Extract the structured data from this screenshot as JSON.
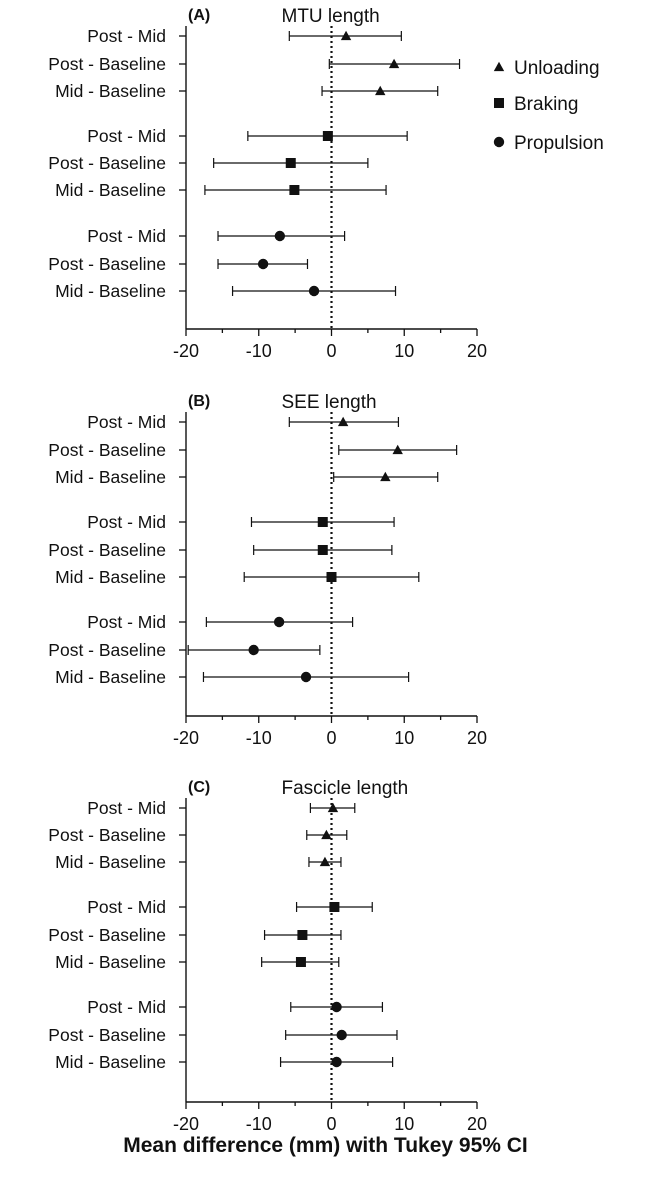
{
  "chart_data": [
    {
      "type": "forest",
      "panel": "(A)",
      "title": "MTU length",
      "xlim": [
        -20,
        20
      ],
      "xticks": [
        -20,
        -10,
        0,
        10,
        20
      ],
      "reference_line": 0,
      "rows": [
        {
          "label": "Post - Mid",
          "group": "Unloading",
          "mean": 2.0,
          "lo": -5.8,
          "hi": 9.6
        },
        {
          "label": "Post - Baseline",
          "group": "Unloading",
          "mean": 8.6,
          "lo": -0.3,
          "hi": 17.6
        },
        {
          "label": "Mid - Baseline",
          "group": "Unloading",
          "mean": 6.7,
          "lo": -1.3,
          "hi": 14.6
        },
        {
          "label": "Post - Mid",
          "group": "Braking",
          "mean": -0.5,
          "lo": -11.5,
          "hi": 10.4
        },
        {
          "label": "Post - Baseline",
          "group": "Braking",
          "mean": -5.6,
          "lo": -16.2,
          "hi": 5.0
        },
        {
          "label": "Mid - Baseline",
          "group": "Braking",
          "mean": -5.1,
          "lo": -17.4,
          "hi": 7.5
        },
        {
          "label": "Post - Mid",
          "group": "Propulsion",
          "mean": -7.1,
          "lo": -15.6,
          "hi": 1.8
        },
        {
          "label": "Post - Baseline",
          "group": "Propulsion",
          "mean": -9.4,
          "lo": -15.6,
          "hi": -3.3
        },
        {
          "label": "Mid - Baseline",
          "group": "Propulsion",
          "mean": -2.4,
          "lo": -13.6,
          "hi": 8.8
        }
      ]
    },
    {
      "type": "forest",
      "panel": "(B)",
      "title": "SEE length",
      "xlim": [
        -20,
        20
      ],
      "xticks": [
        -20,
        -10,
        0,
        10,
        20
      ],
      "reference_line": 0,
      "rows": [
        {
          "label": "Post - Mid",
          "group": "Unloading",
          "mean": 1.6,
          "lo": -5.8,
          "hi": 9.2
        },
        {
          "label": "Post - Baseline",
          "group": "Unloading",
          "mean": 9.1,
          "lo": 1.0,
          "hi": 17.2
        },
        {
          "label": "Mid - Baseline",
          "group": "Unloading",
          "mean": 7.4,
          "lo": 0.3,
          "hi": 14.6
        },
        {
          "label": "Post - Mid",
          "group": "Braking",
          "mean": -1.2,
          "lo": -11.0,
          "hi": 8.6
        },
        {
          "label": "Post - Baseline",
          "group": "Braking",
          "mean": -1.2,
          "lo": -10.7,
          "hi": 8.3
        },
        {
          "label": "Mid - Baseline",
          "group": "Braking",
          "mean": 0.0,
          "lo": -12.0,
          "hi": 12.0
        },
        {
          "label": "Post - Mid",
          "group": "Propulsion",
          "mean": -7.2,
          "lo": -17.2,
          "hi": 2.9
        },
        {
          "label": "Post - Baseline",
          "group": "Propulsion",
          "mean": -10.7,
          "lo": -19.7,
          "hi": -1.6
        },
        {
          "label": "Mid - Baseline",
          "group": "Propulsion",
          "mean": -3.5,
          "lo": -17.6,
          "hi": 10.6
        }
      ]
    },
    {
      "type": "forest",
      "panel": "(C)",
      "title": "Fascicle length",
      "xlim": [
        -20,
        20
      ],
      "xticks": [
        -20,
        -10,
        0,
        10,
        20
      ],
      "reference_line": 0,
      "rows": [
        {
          "label": "Post - Mid",
          "group": "Unloading",
          "mean": 0.2,
          "lo": -2.9,
          "hi": 3.2
        },
        {
          "label": "Post - Baseline",
          "group": "Unloading",
          "mean": -0.7,
          "lo": -3.4,
          "hi": 2.1
        },
        {
          "label": "Mid - Baseline",
          "group": "Unloading",
          "mean": -0.9,
          "lo": -3.1,
          "hi": 1.3
        },
        {
          "label": "Post - Mid",
          "group": "Braking",
          "mean": 0.4,
          "lo": -4.8,
          "hi": 5.6
        },
        {
          "label": "Post - Baseline",
          "group": "Braking",
          "mean": -4.0,
          "lo": -9.2,
          "hi": 1.3
        },
        {
          "label": "Mid - Baseline",
          "group": "Braking",
          "mean": -4.2,
          "lo": -9.6,
          "hi": 1.0
        },
        {
          "label": "Post - Mid",
          "group": "Propulsion",
          "mean": 0.7,
          "lo": -5.6,
          "hi": 7.0
        },
        {
          "label": "Post - Baseline",
          "group": "Propulsion",
          "mean": 1.4,
          "lo": -6.3,
          "hi": 9.0
        },
        {
          "label": "Mid - Baseline",
          "group": "Propulsion",
          "mean": 0.7,
          "lo": -7.0,
          "hi": 8.4
        }
      ]
    }
  ],
  "legend": {
    "placement": "top-right",
    "items": [
      {
        "name": "Unloading",
        "marker": "triangle"
      },
      {
        "name": "Braking",
        "marker": "square"
      },
      {
        "name": "Propulsion",
        "marker": "circle"
      }
    ]
  },
  "xlabel": "Mean difference (mm) with Tukey 95% CI",
  "colors": {
    "marks": "#111111",
    "reference": "#111111"
  }
}
